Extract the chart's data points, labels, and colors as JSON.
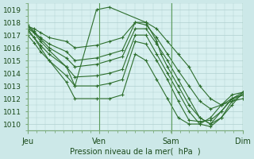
{
  "background_color": "#cce8e8",
  "plot_bg_color": "#d8f0f0",
  "grid_color": "#b0d0d0",
  "line_color": "#2d6e2d",
  "xlabel": "Pression niveau de la mer(  hPa  )",
  "yticks": [
    1010,
    1011,
    1012,
    1013,
    1014,
    1015,
    1016,
    1017,
    1018,
    1019
  ],
  "xtick_labels": [
    "Jeu",
    "Ven",
    "Sam",
    "Dim"
  ],
  "xtick_positions": [
    0.0,
    0.333,
    0.667,
    1.0
  ],
  "ylim": [
    1009.5,
    1019.5
  ],
  "series": [
    {
      "x": [
        0.0,
        0.03,
        0.06,
        0.1,
        0.18,
        0.22,
        0.32,
        0.38,
        0.44,
        0.5,
        0.55,
        0.6,
        0.65,
        0.7,
        0.75,
        0.8,
        0.85,
        0.9,
        0.95,
        1.0
      ],
      "y": [
        1017.7,
        1017.5,
        1017.2,
        1016.8,
        1016.5,
        1016.0,
        1016.2,
        1016.5,
        1016.8,
        1018.0,
        1018.0,
        1017.5,
        1016.5,
        1015.5,
        1014.5,
        1013.0,
        1012.0,
        1011.5,
        1011.8,
        1012.0
      ]
    },
    {
      "x": [
        0.0,
        0.03,
        0.06,
        0.1,
        0.18,
        0.22,
        0.32,
        0.38,
        0.44,
        0.5,
        0.55,
        0.6,
        0.65,
        0.7,
        0.75,
        0.8,
        0.85,
        0.9,
        0.95,
        1.0
      ],
      "y": [
        1017.5,
        1017.2,
        1016.8,
        1016.3,
        1015.7,
        1015.0,
        1015.2,
        1015.5,
        1015.8,
        1018.0,
        1017.8,
        1016.8,
        1015.5,
        1014.2,
        1013.0,
        1011.8,
        1011.2,
        1011.5,
        1012.0,
        1012.3
      ]
    },
    {
      "x": [
        0.0,
        0.03,
        0.06,
        0.1,
        0.18,
        0.22,
        0.32,
        0.38,
        0.44,
        0.5,
        0.55,
        0.6,
        0.65,
        0.7,
        0.75,
        0.8,
        0.85,
        0.9,
        0.95,
        1.0
      ],
      "y": [
        1017.8,
        1017.3,
        1016.7,
        1016.0,
        1015.2,
        1014.5,
        1014.7,
        1015.0,
        1015.3,
        1017.5,
        1017.5,
        1016.3,
        1015.0,
        1013.5,
        1012.0,
        1010.5,
        1010.0,
        1010.5,
        1011.5,
        1012.5
      ]
    },
    {
      "x": [
        0.0,
        0.03,
        0.06,
        0.1,
        0.18,
        0.22,
        0.32,
        0.38,
        0.44,
        0.5,
        0.55,
        0.6,
        0.65,
        0.7,
        0.75,
        0.8,
        0.85,
        0.9,
        0.95,
        1.0
      ],
      "y": [
        1017.3,
        1016.8,
        1016.2,
        1015.5,
        1014.5,
        1013.7,
        1013.8,
        1014.0,
        1014.3,
        1017.0,
        1017.0,
        1015.5,
        1014.0,
        1012.5,
        1011.0,
        1010.0,
        1009.8,
        1010.5,
        1011.8,
        1012.3
      ]
    },
    {
      "x": [
        0.0,
        0.03,
        0.06,
        0.1,
        0.18,
        0.22,
        0.32,
        0.38,
        0.44,
        0.5,
        0.55,
        0.6,
        0.65,
        0.7,
        0.75,
        0.8,
        0.85,
        0.9,
        0.95,
        1.0
      ],
      "y": [
        1017.0,
        1016.4,
        1015.7,
        1015.0,
        1013.8,
        1013.0,
        1013.0,
        1013.2,
        1013.5,
        1016.5,
        1016.3,
        1015.0,
        1013.5,
        1011.8,
        1010.3,
        1010.2,
        1010.3,
        1011.0,
        1012.0,
        1012.5
      ]
    },
    {
      "x": [
        0.0,
        0.03,
        0.06,
        0.1,
        0.18,
        0.22,
        0.32,
        0.38,
        0.44,
        0.5,
        0.55,
        0.6,
        0.65,
        0.7,
        0.75,
        0.8,
        0.85,
        0.9,
        0.95,
        1.0
      ],
      "y": [
        1017.5,
        1016.8,
        1016.0,
        1015.0,
        1013.3,
        1012.0,
        1012.0,
        1012.0,
        1012.3,
        1015.5,
        1015.0,
        1013.5,
        1012.0,
        1010.5,
        1010.0,
        1010.0,
        1010.5,
        1011.5,
        1012.3,
        1012.5
      ]
    },
    {
      "x": [
        0.0,
        0.03,
        0.06,
        0.1,
        0.18,
        0.22,
        0.32,
        0.38,
        0.55,
        0.6,
        0.62,
        0.65,
        0.7,
        0.75,
        0.8,
        0.85,
        0.9,
        0.95,
        1.0
      ],
      "y": [
        1017.7,
        1017.2,
        1016.5,
        1015.8,
        1014.5,
        1013.0,
        1019.0,
        1019.2,
        1018.0,
        1016.5,
        1015.5,
        1014.5,
        1013.0,
        1011.5,
        1010.5,
        1010.0,
        1011.0,
        1012.0,
        1012.3
      ]
    }
  ]
}
